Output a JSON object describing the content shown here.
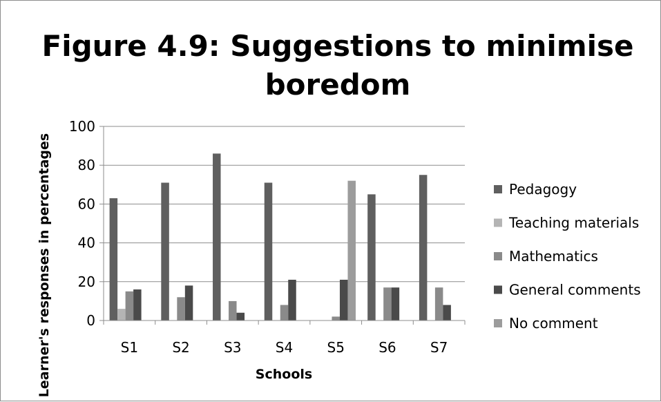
{
  "chart_data": {
    "type": "bar",
    "title": "Figure 4.9: Suggestions to minimise boredom",
    "title_lines": [
      "Figure 4.9: Suggestions to minimise",
      "boredom"
    ],
    "xlabel": "Schools",
    "ylabel": "Learner's responses in percentages",
    "ylim": [
      0,
      100
    ],
    "yticks": [
      0,
      20,
      40,
      60,
      80,
      100
    ],
    "grid": true,
    "legend_position": "right",
    "categories": [
      "S1",
      "S2",
      "S3",
      "S4",
      "S5",
      "S6",
      "S7"
    ],
    "series": [
      {
        "name": "Pedagogy",
        "color": "#5f5f5f",
        "values": [
          63,
          71,
          86,
          71,
          0,
          65,
          75
        ]
      },
      {
        "name": "Teaching materials",
        "color": "#b4b4b4",
        "values": [
          6,
          0,
          0,
          0,
          0,
          0,
          0
        ]
      },
      {
        "name": "Mathematics",
        "color": "#8a8a8a",
        "values": [
          15,
          12,
          10,
          8,
          2,
          17,
          17
        ]
      },
      {
        "name": "General comments",
        "color": "#4a4a4a",
        "values": [
          16,
          18,
          4,
          21,
          21,
          17,
          8
        ]
      },
      {
        "name": "No comment",
        "color": "#9c9c9c",
        "values": [
          0,
          0,
          0,
          0,
          72,
          0,
          0
        ]
      }
    ]
  }
}
